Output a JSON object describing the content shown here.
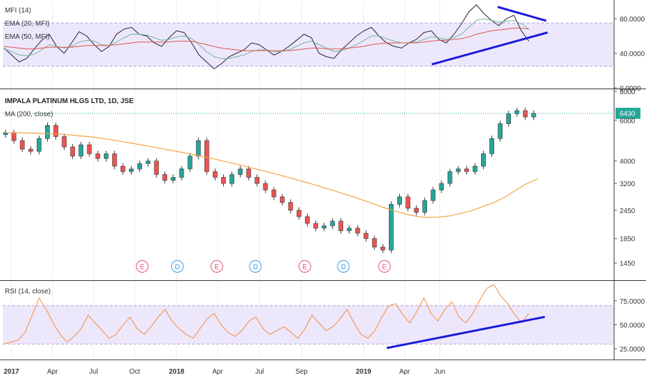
{
  "chart_data": [
    {
      "type": "line",
      "pane": "mfi",
      "legend": [
        "MFI (14)",
        "EMA (20, MFI)",
        "EMA (50, MFI)"
      ],
      "ylim": [
        0,
        100
      ],
      "y_ticks": [
        {
          "v": 80,
          "label": "80.0000"
        },
        {
          "v": 40,
          "label": "40.0000"
        },
        {
          "v": 0,
          "label": "0.0000"
        }
      ],
      "band": [
        25,
        75
      ],
      "series": [
        {
          "name": "MFI (14)",
          "color": "#1f1f3a",
          "values": [
            46,
            38,
            30,
            34,
            45,
            55,
            62,
            48,
            40,
            52,
            65,
            60,
            50,
            42,
            48,
            62,
            68,
            70,
            62,
            60,
            52,
            48,
            58,
            66,
            64,
            52,
            38,
            30,
            22,
            28,
            36,
            40,
            44,
            52,
            50,
            44,
            38,
            42,
            48,
            55,
            62,
            58,
            40,
            36,
            34,
            44,
            52,
            60,
            66,
            70,
            60,
            52,
            48,
            46,
            52,
            56,
            64,
            66,
            56,
            52,
            62,
            74,
            88,
            96,
            86,
            78,
            72,
            80,
            84,
            66,
            54
          ]
        },
        {
          "name": "EMA (20, MFI)",
          "color": "#6fb59a",
          "values": [
            45,
            42,
            38,
            37,
            39,
            44,
            50,
            48,
            46,
            48,
            53,
            55,
            54,
            50,
            49,
            53,
            58,
            62,
            62,
            61,
            58,
            55,
            56,
            59,
            60,
            57,
            50,
            42,
            36,
            34,
            34,
            36,
            38,
            42,
            44,
            44,
            42,
            42,
            44,
            48,
            52,
            54,
            50,
            46,
            42,
            43,
            46,
            50,
            55,
            60,
            60,
            57,
            54,
            52,
            52,
            53,
            56,
            59,
            58,
            56,
            58,
            62,
            70,
            78,
            80,
            78,
            76,
            77,
            78,
            74,
            68
          ]
        },
        {
          "name": "EMA (50, MFI)",
          "color": "#d9534f",
          "values": [
            48,
            47,
            46,
            45,
            45,
            46,
            47,
            47,
            47,
            47,
            48,
            49,
            49,
            49,
            49,
            50,
            51,
            52,
            53,
            53,
            53,
            53,
            53,
            54,
            54,
            54,
            52,
            50,
            48,
            46,
            45,
            44,
            43,
            43,
            43,
            43,
            43,
            43,
            43,
            44,
            45,
            46,
            46,
            45,
            45,
            45,
            46,
            47,
            48,
            50,
            51,
            52,
            52,
            52,
            52,
            52,
            53,
            54,
            55,
            55,
            56,
            57,
            59,
            62,
            64,
            66,
            67,
            68,
            69,
            69,
            68
          ]
        }
      ]
    },
    {
      "type": "line",
      "pane": "price",
      "title": "IMPALA PLATINUM HLGS LTD, 1D, JSE",
      "legend": [
        "MA (200, close)"
      ],
      "y_scale": "log",
      "ylim": [
        1300,
        8000
      ],
      "y_ticks": [
        {
          "v": 8000,
          "label": "8000"
        },
        {
          "v": 6000,
          "label": "6000"
        },
        {
          "v": 4000,
          "label": "4000"
        },
        {
          "v": 3200,
          "label": "3200"
        },
        {
          "v": 2450,
          "label": "2450"
        },
        {
          "v": 1850,
          "label": "1850"
        },
        {
          "v": 1450,
          "label": "1450"
        }
      ],
      "last_price": {
        "value": 6430,
        "label": "6430",
        "color": "#26a69a"
      },
      "x_ticks": [
        {
          "i": 0.7,
          "label": "2017",
          "bold": true
        },
        {
          "i": 5.6,
          "label": "Apr"
        },
        {
          "i": 10.5,
          "label": "Jul"
        },
        {
          "i": 15.4,
          "label": "Oct"
        },
        {
          "i": 20.4,
          "label": "2018",
          "bold": true
        },
        {
          "i": 25.3,
          "label": "Apr"
        },
        {
          "i": 30.3,
          "label": "Jul"
        },
        {
          "i": 35.3,
          "label": "Sep"
        },
        {
          "i": 42.7,
          "label": "2019",
          "bold": true
        },
        {
          "i": 47.6,
          "label": "Apr"
        },
        {
          "i": 51.8,
          "label": "Jun"
        }
      ],
      "close": [
        5300,
        4900,
        4500,
        4400,
        5000,
        5700,
        5100,
        4600,
        4200,
        4700,
        4300,
        4100,
        4300,
        3800,
        3600,
        3700,
        3900,
        4000,
        3500,
        3300,
        3400,
        3700,
        4200,
        4900,
        3600,
        3400,
        3200,
        3500,
        3700,
        3400,
        3200,
        3000,
        2800,
        2650,
        2450,
        2300,
        2150,
        2050,
        2100,
        2200,
        2000,
        2050,
        1950,
        1850,
        1700,
        1650,
        2600,
        2800,
        2500,
        2400,
        2700,
        3000,
        3200,
        3600,
        3700,
        3600,
        3800,
        4300,
        5000,
        5800,
        6400,
        6600,
        6200,
        6430
      ],
      "ma200": [
        5300,
        5300,
        5290,
        5270,
        5250,
        5220,
        5180,
        5130,
        5080,
        5000,
        4920,
        4830,
        4740,
        4650,
        4560,
        4470,
        4380,
        4290,
        4200,
        4100,
        4000,
        3900,
        3800,
        3700,
        3600,
        3500,
        3400,
        3300,
        3200,
        3100,
        3000,
        2900,
        2800,
        2700,
        2600,
        2500,
        2420,
        2350,
        2300,
        2280,
        2290,
        2320,
        2380,
        2450,
        2550,
        2650,
        2800,
        3000,
        3200,
        3350
      ],
      "ma200_color": "#f4a340",
      "markers": [
        {
          "i": 16.3,
          "letter": "E",
          "color": "#e05273"
        },
        {
          "i": 20.5,
          "letter": "D",
          "color": "#2f9be0"
        },
        {
          "i": 25.2,
          "letter": "E",
          "color": "#e05273"
        },
        {
          "i": 29.8,
          "letter": "D",
          "color": "#2f9be0"
        },
        {
          "i": 35.7,
          "letter": "E",
          "color": "#e05273"
        },
        {
          "i": 40.3,
          "letter": "D",
          "color": "#2f9be0"
        },
        {
          "i": 45.2,
          "letter": "E",
          "color": "#e05273"
        }
      ]
    },
    {
      "type": "line",
      "pane": "rsi",
      "legend": [
        "RSI (14, close)"
      ],
      "ylim": [
        15,
        95
      ],
      "y_ticks": [
        {
          "v": 75,
          "label": "75.0000"
        },
        {
          "v": 50,
          "label": "50.0000"
        },
        {
          "v": 25,
          "label": "25.0000"
        }
      ],
      "band": [
        30,
        70
      ],
      "series": [
        {
          "name": "RSI (14, close)",
          "color": "#f28a3a",
          "values": [
            30,
            32,
            34,
            42,
            60,
            78,
            66,
            52,
            40,
            32,
            38,
            46,
            60,
            52,
            44,
            36,
            40,
            50,
            58,
            46,
            40,
            48,
            58,
            66,
            54,
            46,
            40,
            36,
            46,
            56,
            62,
            50,
            42,
            38,
            44,
            54,
            58,
            46,
            40,
            44,
            48,
            42,
            36,
            46,
            60,
            52,
            44,
            48,
            56,
            66,
            52,
            40,
            36,
            44,
            58,
            70,
            72,
            60,
            52,
            64,
            78,
            62,
            54,
            66,
            74,
            58,
            52,
            62,
            76,
            88,
            92,
            80,
            72,
            60,
            52,
            62
          ]
        }
      ]
    }
  ],
  "trendlines": {
    "color": "#1a1adb"
  },
  "colors": {
    "up": "#26a69a",
    "down": "#ef5350",
    "band_fill": "#ede7fb",
    "band_line": "#b39ddb",
    "grid": "#ececec"
  }
}
